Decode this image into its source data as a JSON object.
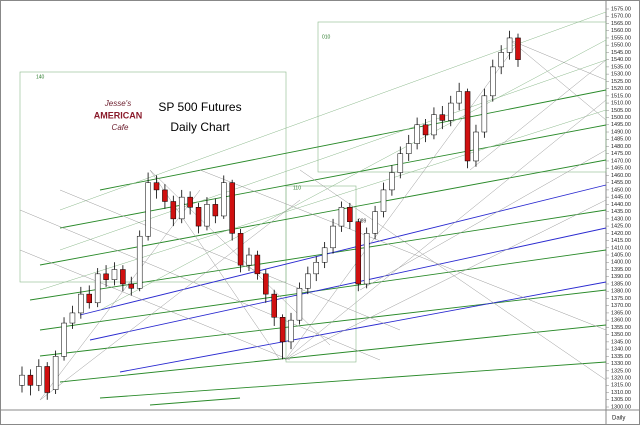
{
  "chart_data": {
    "type": "candlestick",
    "title": "SP 500 Futures",
    "subtitle": "Daily Chart",
    "logo": {
      "top": "Jesse's",
      "middle": "AMERICAN",
      "bottom": "Cafe"
    },
    "annotations": [
      "140",
      "110",
      "089",
      "010"
    ],
    "period_label": "Daily",
    "up_color": "#ffffff",
    "down_color": "#d01010",
    "outline_color": "#000000",
    "series": [
      {
        "name": "open",
        "values": [
          1315,
          1322,
          1315,
          1328,
          1312,
          1335,
          1358,
          1365,
          1378,
          1372,
          1392,
          1388,
          1395,
          1385,
          1382,
          1418,
          1455,
          1450,
          1442,
          1430,
          1445,
          1438,
          1425,
          1440,
          1432,
          1455,
          1420,
          1398,
          1405,
          1392,
          1378,
          1362,
          1345,
          1360,
          1382,
          1392,
          1400,
          1410,
          1425,
          1438,
          1428,
          1385,
          1420,
          1435,
          1450,
          1462,
          1475,
          1482,
          1495,
          1488,
          1502,
          1498,
          1510,
          1518,
          1470,
          1490,
          1515,
          1535,
          1545,
          1555
        ]
      },
      {
        "name": "high",
        "values": [
          1328,
          1326,
          1333,
          1331,
          1339,
          1362,
          1370,
          1383,
          1384,
          1396,
          1398,
          1400,
          1398,
          1390,
          1422,
          1462,
          1460,
          1454,
          1446,
          1450,
          1449,
          1441,
          1445,
          1444,
          1460,
          1457,
          1423,
          1410,
          1408,
          1395,
          1381,
          1364,
          1365,
          1386,
          1397,
          1404,
          1414,
          1430,
          1442,
          1441,
          1430,
          1424,
          1439,
          1455,
          1467,
          1480,
          1488,
          1500,
          1499,
          1507,
          1508,
          1515,
          1524,
          1520,
          1495,
          1520,
          1540,
          1550,
          1560,
          1558
        ]
      },
      {
        "name": "low",
        "values": [
          1310,
          1308,
          1311,
          1305,
          1309,
          1332,
          1354,
          1361,
          1368,
          1369,
          1383,
          1384,
          1380,
          1377,
          1380,
          1415,
          1444,
          1437,
          1425,
          1427,
          1433,
          1420,
          1422,
          1427,
          1430,
          1415,
          1393,
          1394,
          1388,
          1372,
          1356,
          1333,
          1340,
          1357,
          1378,
          1387,
          1396,
          1406,
          1421,
          1423,
          1380,
          1382,
          1416,
          1431,
          1446,
          1458,
          1470,
          1478,
          1483,
          1485,
          1492,
          1494,
          1505,
          1465,
          1466,
          1486,
          1511,
          1530,
          1540,
          1535
        ]
      },
      {
        "name": "close",
        "values": [
          1322,
          1315,
          1328,
          1310,
          1335,
          1358,
          1365,
          1378,
          1372,
          1392,
          1388,
          1395,
          1385,
          1382,
          1418,
          1455,
          1450,
          1442,
          1430,
          1445,
          1438,
          1425,
          1440,
          1432,
          1455,
          1420,
          1398,
          1405,
          1392,
          1378,
          1362,
          1345,
          1360,
          1382,
          1392,
          1400,
          1410,
          1425,
          1438,
          1428,
          1385,
          1420,
          1435,
          1450,
          1462,
          1475,
          1482,
          1495,
          1488,
          1502,
          1498,
          1510,
          1518,
          1470,
          1490,
          1515,
          1535,
          1545,
          1555,
          1540
        ]
      }
    ],
    "ylim": [
      1300,
      1575
    ],
    "yticks": [
      {
        "value": 1575,
        "label": "1575.00"
      },
      {
        "value": 1570,
        "label": "1570.00"
      },
      {
        "value": 1565,
        "label": "1565.00"
      },
      {
        "value": 1560,
        "label": "1560.00"
      },
      {
        "value": 1555,
        "label": "1555.00"
      },
      {
        "value": 1550,
        "label": "1550.00"
      },
      {
        "value": 1545,
        "label": "1545.00"
      },
      {
        "value": 1540,
        "label": "1540.00"
      },
      {
        "value": 1535,
        "label": "1535.00"
      },
      {
        "value": 1530,
        "label": "1530.00"
      },
      {
        "value": 1525,
        "label": "1525.00"
      },
      {
        "value": 1520,
        "label": "1520.00"
      },
      {
        "value": 1515,
        "label": "1515.00"
      },
      {
        "value": 1510,
        "label": "1510.00"
      },
      {
        "value": 1505,
        "label": "1505.00"
      },
      {
        "value": 1500,
        "label": "1500.00"
      },
      {
        "value": 1495,
        "label": "1495.00"
      },
      {
        "value": 1490,
        "label": "1490.00"
      },
      {
        "value": 1485,
        "label": "1485.00"
      },
      {
        "value": 1480,
        "label": "1480.00"
      },
      {
        "value": 1475,
        "label": "1475.00"
      },
      {
        "value": 1470,
        "label": "1470.00"
      },
      {
        "value": 1465,
        "label": "1465.00"
      },
      {
        "value": 1460,
        "label": "1460.00"
      },
      {
        "value": 1455,
        "label": "1455.00"
      },
      {
        "value": 1450,
        "label": "1450.00"
      },
      {
        "value": 1445,
        "label": "1445.00"
      },
      {
        "value": 1440,
        "label": "1440.00"
      },
      {
        "value": 1435,
        "label": "1435.00"
      },
      {
        "value": 1430,
        "label": "1430.00"
      },
      {
        "value": 1425,
        "label": "1425.00"
      },
      {
        "value": 1420,
        "label": "1420.00"
      },
      {
        "value": 1415,
        "label": "1415.00"
      },
      {
        "value": 1410,
        "label": "1410.00"
      },
      {
        "value": 1405,
        "label": "1405.00"
      },
      {
        "value": 1400,
        "label": "1400.00"
      },
      {
        "value": 1395,
        "label": "1395.00"
      },
      {
        "value": 1390,
        "label": "1390.00"
      },
      {
        "value": 1385,
        "label": "1385.00"
      },
      {
        "value": 1380,
        "label": "1380.00"
      },
      {
        "value": 1375,
        "label": "1375.00"
      },
      {
        "value": 1370,
        "label": "1370.00"
      },
      {
        "value": 1365,
        "label": "1365.00"
      },
      {
        "value": 1360,
        "label": "1360.00"
      },
      {
        "value": 1355,
        "label": "1355.00"
      },
      {
        "value": 1350,
        "label": "1350.00"
      },
      {
        "value": 1345,
        "label": "1345.00"
      },
      {
        "value": 1340,
        "label": "1340.00"
      },
      {
        "value": 1335,
        "label": "1335.00"
      },
      {
        "value": 1330,
        "label": "1330.00"
      },
      {
        "value": 1325,
        "label": "1325.00"
      },
      {
        "value": 1320,
        "label": "1320.00"
      },
      {
        "value": 1315,
        "label": "1315.00"
      },
      {
        "value": 1310,
        "label": "1310.00"
      },
      {
        "value": 1305,
        "label": "1305.00"
      },
      {
        "value": 1300,
        "label": "1300.00"
      }
    ]
  }
}
